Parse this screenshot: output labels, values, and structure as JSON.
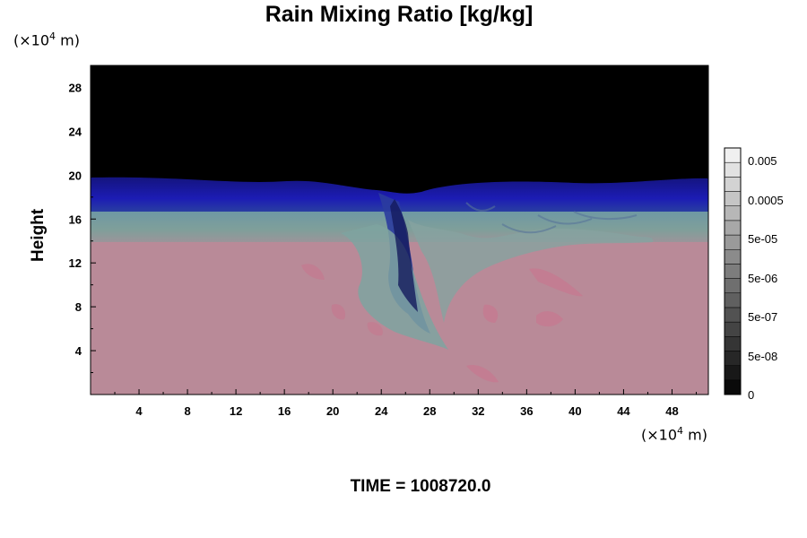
{
  "header": {
    "title": "Rain Mixing Ratio [kg/kg]"
  },
  "axes": {
    "y_scale_label": "(×10",
    "y_scale_exp": "4",
    "y_scale_unit": " m)",
    "x_scale_label": "(×10",
    "x_scale_exp": "4",
    "x_scale_unit": " m)",
    "ylabel": "Height"
  },
  "footer": {
    "time_label": "TIME = 1008720.0"
  },
  "colors": {
    "background_top": "#000000",
    "band_blue": "#1a1aa8",
    "band_teal": "#6f9a9a",
    "lower_region": "#b98a98",
    "pink_streak": "#c77c92"
  },
  "chart_data": {
    "type": "heatmap",
    "title": "Rain Mixing Ratio [kg/kg]",
    "xlabel": "",
    "ylabel": "Height",
    "x_unit": "(×10^4 m)",
    "y_unit": "(×10^4 m)",
    "xlim": [
      0,
      51
    ],
    "ylim": [
      0,
      30
    ],
    "x_ticks": [
      4,
      8,
      12,
      16,
      20,
      24,
      28,
      32,
      36,
      40,
      44,
      48
    ],
    "y_ticks": [
      4,
      8,
      12,
      16,
      20,
      24,
      28
    ],
    "colorbar": {
      "labels": [
        "0.005",
        "0.0005",
        "5e-05",
        "5e-06",
        "5e-07",
        "5e-08",
        "0"
      ],
      "levels": 17
    },
    "field_description_levels": {
      "top_black_above": 20,
      "blue_band": [
        16.5,
        20
      ],
      "teal_band": [
        13.5,
        16.5
      ],
      "below": 13.5
    },
    "annotation": "TIME = 1008720.0"
  }
}
